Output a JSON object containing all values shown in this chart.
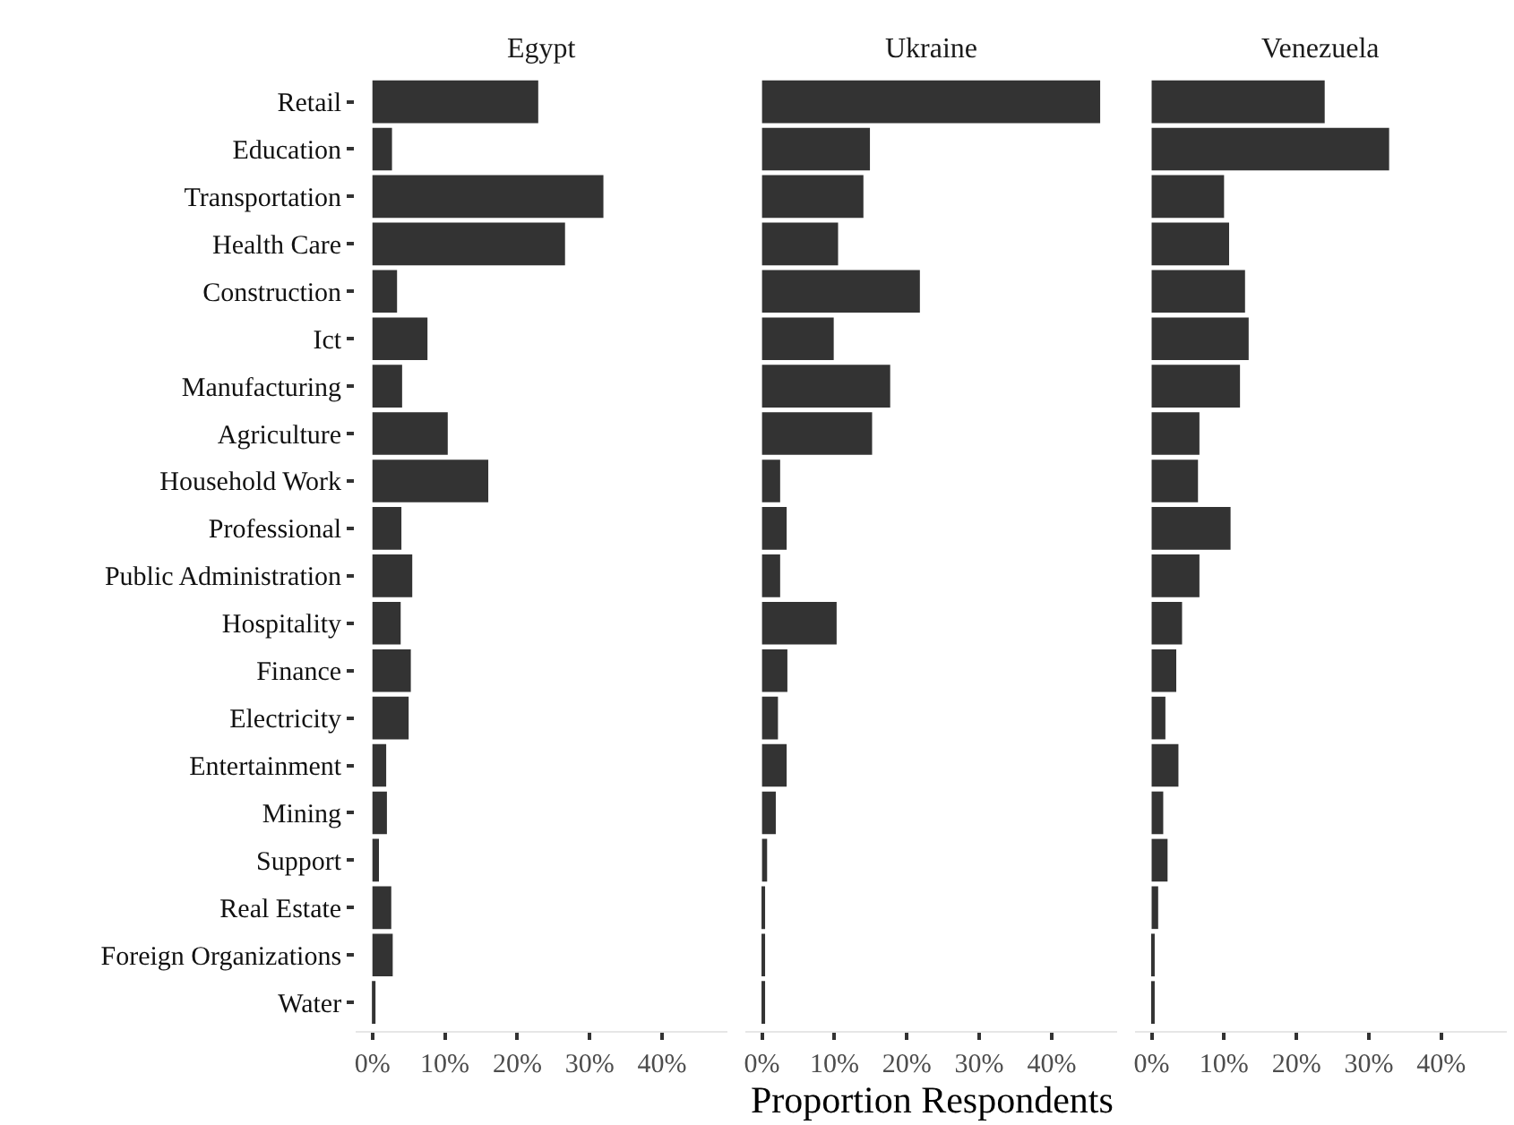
{
  "chart_data": [
    {
      "type": "bar",
      "orientation": "horizontal",
      "title": "Egypt",
      "categories": [
        "Retail",
        "Education",
        "Transportation",
        "Health Care",
        "Construction",
        "Ict",
        "Manufacturing",
        "Agriculture",
        "Household Work",
        "Professional",
        "Public Administration",
        "Hospitality",
        "Finance",
        "Electricity",
        "Entertainment",
        "Mining",
        "Support",
        "Real Estate",
        "Foreign Organizations",
        "Water"
      ],
      "values": [
        22.9,
        2.7,
        31.9,
        26.6,
        3.4,
        7.6,
        4.1,
        10.4,
        16.0,
        4.0,
        5.5,
        3.9,
        5.3,
        5.0,
        1.9,
        2.0,
        0.9,
        2.6,
        2.8,
        0.4
      ],
      "color": "#333333",
      "xlim": [
        -2.3,
        49
      ],
      "xticks": [
        {
          "value": 0,
          "label": "0%"
        },
        {
          "value": 10,
          "label": "10%"
        },
        {
          "value": 20,
          "label": "20%"
        },
        {
          "value": 30,
          "label": "30%"
        },
        {
          "value": 40,
          "label": "40%"
        }
      ],
      "tick_labels": "xy"
    },
    {
      "type": "bar",
      "orientation": "horizontal",
      "title": "Ukraine",
      "xlabel": "Proportion Respondents",
      "categories": [
        null,
        null,
        null,
        null,
        null,
        null,
        null,
        null,
        null,
        null,
        null,
        null,
        null,
        null,
        null,
        null,
        null,
        null,
        null,
        null
      ],
      "values": [
        46.7,
        14.9,
        14.0,
        10.5,
        21.8,
        9.9,
        17.7,
        15.2,
        2.5,
        3.4,
        2.5,
        10.3,
        3.5,
        2.2,
        3.4,
        1.9,
        0.7,
        0.4,
        0.2,
        0.3
      ],
      "color": "#333333",
      "xlim": [
        -2.3,
        49
      ],
      "xticks": [
        {
          "value": 0,
          "label": "0%"
        },
        {
          "value": 10,
          "label": "10%"
        },
        {
          "value": 20,
          "label": "20%"
        },
        {
          "value": 30,
          "label": "30%"
        },
        {
          "value": 40,
          "label": "40%"
        }
      ],
      "tick_labels": "x"
    },
    {
      "type": "bar",
      "orientation": "horizontal",
      "title": "Venezuela",
      "categories": [
        null,
        null,
        null,
        null,
        null,
        null,
        null,
        null,
        null,
        null,
        null,
        null,
        null,
        null,
        null,
        null,
        null,
        null,
        null,
        null
      ],
      "values": [
        23.9,
        32.8,
        10.0,
        10.7,
        12.9,
        13.4,
        12.2,
        6.6,
        6.4,
        10.9,
        6.6,
        4.2,
        3.4,
        1.9,
        3.7,
        1.6,
        2.2,
        0.9,
        0.3,
        0.3
      ],
      "color": "#333333",
      "xlim": [
        -2.3,
        49
      ],
      "xticks": [
        {
          "value": 0,
          "label": "0%"
        },
        {
          "value": 10,
          "label": "10%"
        },
        {
          "value": 20,
          "label": "20%"
        },
        {
          "value": 30,
          "label": "30%"
        },
        {
          "value": 40,
          "label": "40%"
        }
      ],
      "tick_labels": "x"
    }
  ]
}
